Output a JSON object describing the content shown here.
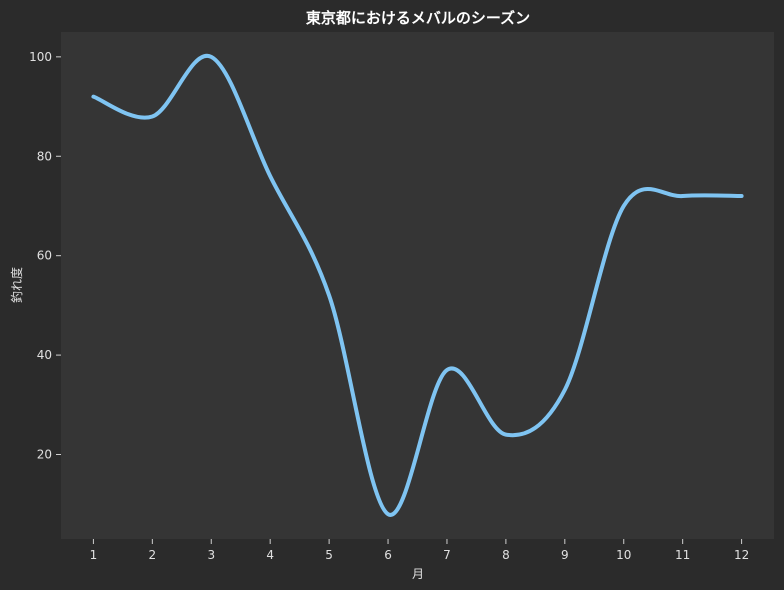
{
  "chart_data": {
    "type": "line",
    "title": "東京都におけるメバルのシーズン",
    "xlabel": "月",
    "ylabel": "釣れ度",
    "x": [
      1,
      2,
      3,
      4,
      5,
      6,
      7,
      8,
      9,
      10,
      11,
      12
    ],
    "series": [
      {
        "values": [
          92,
          88,
          100,
          76,
          52,
          8,
          37,
          24,
          33,
          70,
          72,
          72
        ]
      }
    ],
    "xlim": [
      0.45,
      12.55
    ],
    "ylim": [
      3,
      105
    ],
    "xticks": [
      1,
      2,
      3,
      4,
      5,
      6,
      7,
      8,
      9,
      10,
      11,
      12
    ],
    "yticks": [
      20,
      40,
      60,
      80,
      100
    ],
    "grid": false,
    "colors": {
      "figure_bg": "#2b2b2b",
      "plot_bg": "#353535",
      "line": "#7fc4f2",
      "text": "#e0e0e0"
    }
  }
}
